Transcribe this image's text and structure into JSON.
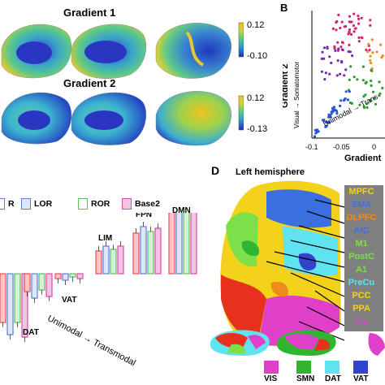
{
  "panel_a": {
    "gradient1_title": "Gradient 1",
    "gradient2_title": "Gradient 2",
    "cb1_max": "0.12",
    "cb1_min": "-0.10",
    "cb2_max": "0.12",
    "cb2_min": "-0.13"
  },
  "panel_b": {
    "letter": "B",
    "ylabel": "Gradient 2",
    "ylabel_arrow": "Visual → Somatomotor",
    "xlabel": "Gradient",
    "diag_label": "Unimodal → Trans",
    "ticks": [
      "-0.1",
      "-0.05",
      "0"
    ]
  },
  "panel_c": {
    "legend": [
      {
        "label": "R",
        "color": "#5b7fd6"
      },
      {
        "label": "LOR",
        "color": "#5b7fd6"
      },
      {
        "label": "ROR",
        "color": "#5cc05c"
      },
      {
        "label": "Base2",
        "color": "#d64ea8"
      }
    ],
    "networks": [
      "DAT",
      "VAT",
      "LIM",
      "FPN",
      "DMN"
    ],
    "arrow_label": "Unimodal → Transmodal"
  },
  "panel_d": {
    "letter": "D",
    "title": "Left hemisphere",
    "regions": [
      {
        "label": "MPFC",
        "color": "#f2d21b"
      },
      {
        "label": "SMA",
        "color": "#3b6fe0"
      },
      {
        "label": "DLPFC",
        "color": "#f08a1c"
      },
      {
        "label": "AIC",
        "color": "#3b6fe0"
      },
      {
        "label": "M1",
        "color": "#7de04a"
      },
      {
        "label": "PostC",
        "color": "#7de04a"
      },
      {
        "label": "A1",
        "color": "#7de04a"
      },
      {
        "label": "PreCu",
        "color": "#5fe3f0"
      },
      {
        "label": "PCC",
        "color": "#f2d21b"
      },
      {
        "label": "PPA",
        "color": "#f2d21b"
      },
      {
        "label": "Vis",
        "color": "#e040c8"
      }
    ],
    "networks": [
      {
        "label": "VIS",
        "color": "#e040c8"
      },
      {
        "label": "SMN",
        "color": "#2fb52f"
      },
      {
        "label": "DAT",
        "color": "#5fe3f0"
      },
      {
        "label": "VAT",
        "color": "#3344cc"
      }
    ]
  }
}
